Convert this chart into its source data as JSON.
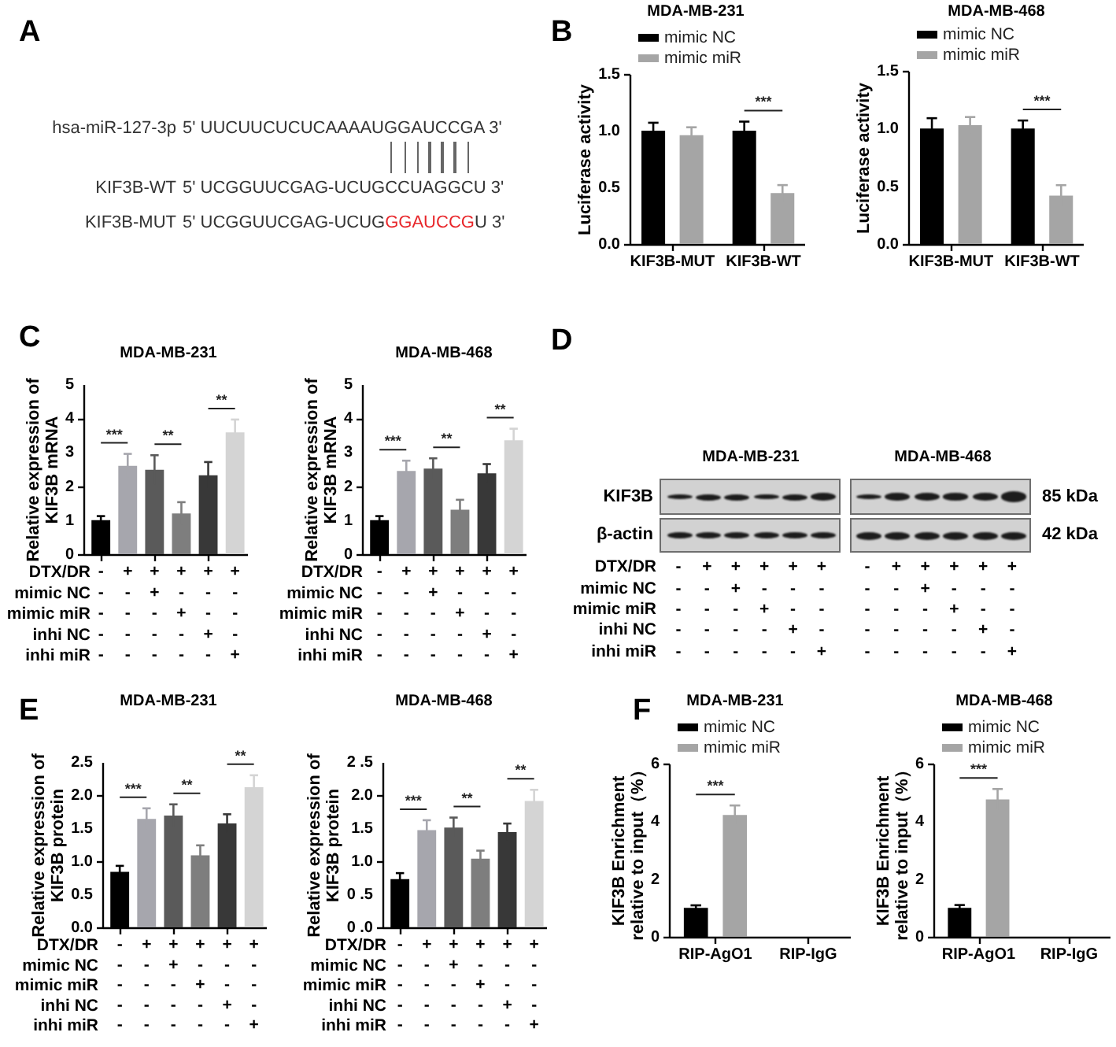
{
  "chart_data": [
    {
      "type": "other",
      "categories": [
        "hsa-miR-127-3p",
        "KIF3B-WT",
        "KIF3B-MUT"
      ],
      "annotations": [
        "A",
        "5' UUCUUCUCUCAAAAUGGAUCCGA 3'",
        "5' UCGGUUCGAG-UCUGCCUAGGCU 3'",
        "5' UCGGUUCGAG-UCUG",
        "GGAUCCG",
        "U 3'"
      ],
      "colors": [
        "#000000",
        "#333333",
        "#333333",
        "#333333",
        "#e8262a",
        "#333333"
      ]
    },
    {
      "type": "bar",
      "title": "MDA-MB-231",
      "ylabel": "Luciferase activity",
      "categories": [
        "KIF3B-MUT",
        "KIF3B-WT"
      ],
      "series": [
        {
          "name": "mimic NC",
          "color": "#000000",
          "values": [
            1.0,
            1.0
          ],
          "errors": [
            0.07,
            0.08
          ]
        },
        {
          "name": "mimic miR",
          "color": "#a5a5a5",
          "values": [
            0.96,
            0.45
          ],
          "errors": [
            0.07,
            0.07
          ]
        }
      ],
      "ylim": [
        0,
        1.5
      ],
      "yticks": [
        {
          "value": 0,
          "label": "0.0"
        },
        0.5,
        {
          "value": 1,
          "label": "1.0"
        },
        1.5
      ],
      "legend": "top left",
      "annotations": [
        "B",
        "***"
      ]
    },
    {
      "type": "bar",
      "title": "MDA-MB-468",
      "ylabel": "Luciferase activity",
      "categories": [
        "KIF3B-MUT",
        "KIF3B-WT"
      ],
      "series": [
        {
          "name": "mimic NC",
          "color": "#000000",
          "values": [
            1.0,
            1.0
          ],
          "errors": [
            0.09,
            0.07
          ]
        },
        {
          "name": "mimic miR",
          "color": "#a5a5a5",
          "values": [
            1.03,
            0.42
          ],
          "errors": [
            0.07,
            0.09
          ]
        }
      ],
      "ylim": [
        0,
        1.5
      ],
      "yticks": [
        {
          "value": 0,
          "label": "0.0"
        },
        0.5,
        {
          "value": 1,
          "label": "1.0"
        },
        1.5
      ],
      "legend": "top left",
      "annotations": [
        "***"
      ]
    },
    {
      "type": "bar",
      "title": "MDA-MB-231",
      "ylabel": "Relative expression of\nKIF3B mRNA",
      "xlabel": "DTX/DR\nmimic NC\nmimic miR\ninhi NC\ninhi miR",
      "categories": [
        "-\n-\n-\n-\n-",
        "+\n-\n-\n-\n-",
        "+\n+\n-\n-\n-",
        "+\n-\n+\n-\n-",
        "+\n-\n-\n+\n-",
        "+\n-\n-\n-\n+"
      ],
      "values": [
        1.0,
        2.6,
        2.48,
        1.2,
        2.32,
        3.58
      ],
      "errors": [
        0.12,
        0.35,
        0.43,
        0.33,
        0.39,
        0.38
      ],
      "colors": [
        "#000000",
        "#a6a6ad",
        "#5a5a5a",
        "#7e7e7e",
        "#383838",
        "#d4d4d4"
      ],
      "ylim": [
        0,
        5
      ],
      "yticks": [
        0,
        1,
        2,
        3,
        4,
        5
      ],
      "annotations": [
        "C",
        "***",
        "**",
        "**"
      ]
    },
    {
      "type": "bar",
      "title": "MDA-MB-468",
      "ylabel": "Relative expression of\nKIF3B mRNA",
      "xlabel": "DTX/DR\nmimic NC\nmimic miR\ninhi NC\ninhi miR",
      "categories": [
        "-\n-\n-\n-\n-",
        "+\n-\n-\n-\n-",
        "+\n+\n-\n-\n-",
        "+\n-\n+\n-\n-",
        "+\n-\n-\n+\n-",
        "+\n-\n-\n-\n+"
      ],
      "values": [
        1.0,
        2.45,
        2.52,
        1.31,
        2.38,
        3.35
      ],
      "errors": [
        0.12,
        0.3,
        0.3,
        0.29,
        0.27,
        0.34
      ],
      "colors": [
        "#000000",
        "#a6a6ad",
        "#5a5a5a",
        "#7e7e7e",
        "#383838",
        "#d4d4d4"
      ],
      "ylim": [
        0,
        5
      ],
      "yticks": [
        0,
        1,
        2,
        3,
        4,
        5
      ],
      "annotations": [
        "***",
        "**",
        "**"
      ]
    },
    {
      "type": "other",
      "title": "MDA-MB-231",
      "xlabel": "DTX/DR\nmimic NC\nmimic miR\ninhi NC\ninhi miR",
      "categories": [
        "-\n-\n-\n-\n-",
        "+\n-\n-\n-\n-",
        "+\n+\n-\n-\n-",
        "+\n-\n+\n-\n-",
        "+\n-\n-\n+\n-",
        "+\n-\n-\n-\n+"
      ],
      "annotations": [
        "D",
        "KIF3B",
        "β-actin"
      ]
    },
    {
      "type": "other",
      "title": "MDA-MB-468",
      "categories": [
        "-\n-\n-\n-\n-",
        "+\n-\n-\n-\n-",
        "+\n+\n-\n-\n-",
        "+\n-\n+\n-\n-",
        "+\n-\n-\n+\n-",
        "+\n-\n-\n-\n+"
      ],
      "annotations": [
        "85 kDa",
        "42 kDa"
      ]
    },
    {
      "type": "bar",
      "title": "MDA-MB-231",
      "ylabel": "Relative expression of\nKIF3B protein",
      "xlabel": "DTX/DR\nmimic NC\nmimic miR\ninhi NC\ninhi miR",
      "categories": [
        "-\n-\n-\n-\n-",
        "+\n-\n-\n-\n-",
        "+\n+\n-\n-\n-",
        "+\n-\n+\n-\n-",
        "+\n-\n-\n+\n-",
        "+\n-\n-\n-\n+"
      ],
      "values": [
        0.84,
        1.64,
        1.69,
        1.09,
        1.57,
        2.12
      ],
      "errors": [
        0.09,
        0.16,
        0.17,
        0.15,
        0.14,
        0.18
      ],
      "colors": [
        "#000000",
        "#a6a6ad",
        "#5a5a5a",
        "#7e7e7e",
        "#383838",
        "#d4d4d4"
      ],
      "ylim": [
        0,
        2.5
      ],
      "yticks": [
        {
          "value": 0,
          "label": "0.0"
        },
        0.5,
        {
          "value": 1,
          "label": "1.0"
        },
        1.5,
        {
          "value": 2,
          "label": "2.0"
        },
        2.5
      ],
      "annotations": [
        "E",
        "***",
        "**",
        "**"
      ]
    },
    {
      "type": "bar",
      "title": "MDA-MB-468",
      "ylabel": "Relative expression of\nKIF3B protein",
      "xlabel": "DTX/DR\nmimic NC\nmimic miR\ninhi NC\ninhi miR",
      "categories": [
        "-\n-\n-\n-\n-",
        "+\n-\n-\n-\n-",
        "+\n+\n-\n-\n-",
        "+\n-\n+\n-\n-",
        "+\n-\n-\n+\n-",
        "+\n-\n-\n-\n+"
      ],
      "values": [
        0.73,
        1.47,
        1.51,
        1.04,
        1.44,
        1.91
      ],
      "errors": [
        0.09,
        0.15,
        0.15,
        0.12,
        0.13,
        0.17
      ],
      "colors": [
        "#000000",
        "#a6a6ad",
        "#5a5a5a",
        "#7e7e7e",
        "#383838",
        "#d4d4d4"
      ],
      "ylim": [
        0,
        2.5
      ],
      "yticks": [
        {
          "value": 0,
          "label": "0 .0"
        },
        {
          "value": 0.5,
          "label": "0 .5"
        },
        {
          "value": 1,
          "label": "1.0"
        },
        1.5,
        {
          "value": 2,
          "label": "2.0"
        },
        {
          "value": 2.5,
          "label": "2 .5"
        }
      ],
      "annotations": [
        "***",
        "**",
        "**"
      ]
    },
    {
      "type": "bar",
      "title": "MDA-MB-231",
      "ylabel": "KIF3B Enrichment\nrelative to input（%）",
      "categories": [
        "RIP-AgO1",
        "RIP-IgG"
      ],
      "series": [
        {
          "name": "mimic NC",
          "color": "#000000",
          "values": [
            1.0,
            null
          ],
          "errors": [
            0.09,
            null
          ]
        },
        {
          "name": "mimic miR",
          "color": "#a5a5a5",
          "values": [
            4.22,
            null
          ],
          "errors": [
            0.33,
            null
          ]
        }
      ],
      "ylim": [
        0,
        6
      ],
      "yticks": [
        0,
        2,
        4,
        6
      ],
      "legend": "top left",
      "annotations": [
        "F",
        "***"
      ]
    },
    {
      "type": "bar",
      "title": "MDA-MB-468",
      "ylabel": "KIF3B Enrichment\nrelative to input（%）",
      "categories": [
        "RIP-AgO1",
        "RIP-IgG"
      ],
      "series": [
        {
          "name": "mimic NC",
          "color": "#000000",
          "values": [
            1.0,
            null
          ],
          "errors": [
            0.1,
            null
          ]
        },
        {
          "name": "mimic miR",
          "color": "#a5a5a5",
          "values": [
            4.76,
            null
          ],
          "errors": [
            0.36,
            null
          ]
        }
      ],
      "ylim": [
        0,
        6
      ],
      "yticks": [
        0,
        2,
        4,
        6
      ],
      "legend": "top left",
      "annotations": [
        "***"
      ]
    }
  ]
}
